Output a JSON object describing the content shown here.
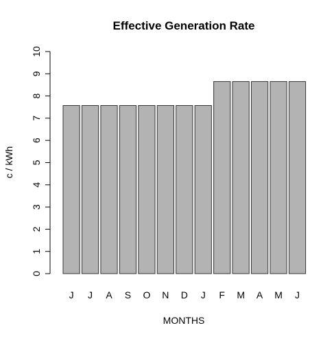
{
  "chart_data": {
    "type": "bar",
    "title": "Effective Generation Rate",
    "xlabel": "MONTHS",
    "ylabel": "c / kWh",
    "categories": [
      "J",
      "J",
      "A",
      "S",
      "O",
      "N",
      "D",
      "J",
      "F",
      "M",
      "A",
      "M",
      "J"
    ],
    "values": [
      7.57,
      7.57,
      7.57,
      7.57,
      7.57,
      7.57,
      7.57,
      7.57,
      8.65,
      8.65,
      8.65,
      8.65,
      8.65
    ],
    "ylim": [
      0,
      10
    ],
    "yticks": [
      0,
      1,
      2,
      3,
      4,
      5,
      6,
      7,
      8,
      9,
      10
    ],
    "grid": false,
    "bar_color": "#b3b3b3",
    "bar_edge_color": "#333333"
  }
}
